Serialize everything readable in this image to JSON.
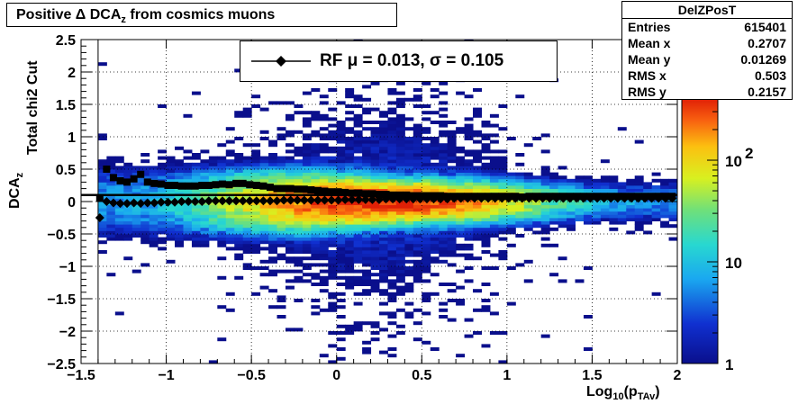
{
  "title": {
    "prefix": "Positive Δ DCA",
    "sub": "z",
    "suffix": " from cosmics muons"
  },
  "stats": {
    "name": "DelZPosT",
    "rows": [
      {
        "label": "Entries",
        "value": "615401"
      },
      {
        "label": "Mean x",
        "value": "0.2707"
      },
      {
        "label": "Mean y",
        "value": "0.01269"
      },
      {
        "label": "RMS x",
        "value": "0.503"
      },
      {
        "label": "RMS y",
        "value": "0.2157"
      }
    ]
  },
  "legend": {
    "text": "RF μ =  0.013, σ =   0.105"
  },
  "axes": {
    "x_title_main": "Log",
    "x_title_sub": "10",
    "x_title_after": "(p",
    "x_title_sub2": "TAv",
    "x_title_end": ")",
    "y_title_top": "Total chi2 Cut",
    "y_title_main": "DCA",
    "y_title_sub": "z"
  },
  "chart_data": {
    "type": "heatmap",
    "xlim": [
      -1.5,
      2.0
    ],
    "ylim": [
      -2.5,
      2.5
    ],
    "log_z": true,
    "zlim": [
      1,
      400
    ],
    "x_ticks": [
      -1.5,
      -1,
      -0.5,
      0,
      0.5,
      1,
      1.5,
      2
    ],
    "x_tick_labels": [
      "−1.5",
      "−1",
      "−0.5",
      "0",
      "0.5",
      "1",
      "1.5",
      "2"
    ],
    "y_ticks": [
      -2.5,
      -2,
      -1.5,
      -1,
      -0.5,
      0,
      0.5,
      1,
      1.5,
      2,
      2.5
    ],
    "y_tick_labels": [
      "−2.5",
      "−2",
      "−1.5",
      "−1",
      "−0.5",
      "0",
      "0.5",
      "1",
      "1.5",
      "2",
      "2.5"
    ],
    "colorbar_ticks": [
      1,
      10,
      100
    ],
    "colorbar_labels": [
      "1",
      "10",
      "10"
    ],
    "colorbar_exp": "2",
    "grid": true,
    "fit_line_y": 0.1,
    "vertical_line_x": -1.4,
    "series": [
      {
        "marker": "square",
        "x": [
          -1.39,
          -1.35,
          -1.31,
          -1.27,
          -1.23,
          -1.19,
          -1.15,
          -1.11,
          -1.07,
          -1.03,
          -0.99,
          -0.95,
          -0.91,
          -0.87,
          -0.83,
          -0.79,
          -0.75,
          -0.71,
          -0.67,
          -0.63,
          -0.59,
          -0.55,
          -0.51,
          -0.47,
          -0.43,
          -0.39,
          -0.35,
          -0.31,
          -0.27,
          -0.23,
          -0.19,
          -0.15,
          -0.11,
          -0.07,
          -0.03,
          0.01,
          0.05,
          0.09,
          0.13,
          0.17,
          0.21,
          0.25,
          0.29,
          0.33,
          0.37,
          0.41,
          0.45,
          0.49,
          0.53,
          0.57,
          0.61,
          0.65,
          0.69,
          0.73,
          0.77,
          0.81,
          0.85,
          0.89,
          0.93,
          0.97,
          1.01,
          1.05,
          1.09,
          1.13,
          1.17,
          1.21,
          1.25,
          1.29,
          1.33,
          1.37,
          1.41,
          1.45,
          1.49,
          1.53,
          1.57,
          1.61,
          1.65,
          1.69,
          1.73,
          1.77,
          1.81,
          1.85,
          1.89,
          1.93,
          1.97
        ],
        "y": [
          0.05,
          0.5,
          0.37,
          0.32,
          0.3,
          0.35,
          0.42,
          0.3,
          0.28,
          0.27,
          0.25,
          0.25,
          0.24,
          0.24,
          0.24,
          0.25,
          0.25,
          0.26,
          0.27,
          0.26,
          0.28,
          0.28,
          0.26,
          0.25,
          0.24,
          0.22,
          0.2,
          0.2,
          0.2,
          0.19,
          0.19,
          0.18,
          0.17,
          0.16,
          0.15,
          0.15,
          0.14,
          0.13,
          0.13,
          0.12,
          0.12,
          0.11,
          0.11,
          0.1,
          0.1,
          0.1,
          0.09,
          0.09,
          0.09,
          0.09,
          0.09,
          0.08,
          0.08,
          0.08,
          0.08,
          0.08,
          0.08,
          0.08,
          0.08,
          0.08,
          0.08,
          0.08,
          0.07,
          0.08,
          0.08,
          0.08,
          0.08,
          0.08,
          0.08,
          0.08,
          0.08,
          0.08,
          0.08,
          0.08,
          0.08,
          0.08,
          0.08,
          0.08,
          0.08,
          0.08,
          0.08,
          0.08,
          0.08,
          0.08,
          0.08
        ]
      },
      {
        "marker": "diamond",
        "x": [
          -1.39,
          -1.35,
          -1.31,
          -1.27,
          -1.23,
          -1.19,
          -1.15,
          -1.11,
          -1.07,
          -1.03,
          -0.99,
          -0.95,
          -0.91,
          -0.87,
          -0.83,
          -0.79,
          -0.75,
          -0.71,
          -0.67,
          -0.63,
          -0.59,
          -0.55,
          -0.51,
          -0.47,
          -0.43,
          -0.39,
          -0.35,
          -0.31,
          -0.27,
          -0.23,
          -0.19,
          -0.15,
          -0.11,
          -0.07,
          -0.03,
          0.01,
          0.05,
          0.09,
          0.13,
          0.17,
          0.21,
          0.25,
          0.29,
          0.33,
          0.37,
          0.41,
          0.45,
          0.49,
          0.53,
          0.57,
          0.61,
          0.65,
          0.69,
          0.73,
          0.77,
          0.81,
          0.85,
          0.89,
          0.93,
          0.97,
          1.01,
          1.05,
          1.09,
          1.13,
          1.17,
          1.21,
          1.25,
          1.29,
          1.33,
          1.37,
          1.41,
          1.45,
          1.49,
          1.53,
          1.57,
          1.61,
          1.65,
          1.69,
          1.73,
          1.77,
          1.81,
          1.85,
          1.89,
          1.93,
          1.97
        ],
        "y": [
          -0.25,
          0.0,
          -0.02,
          -0.03,
          -0.03,
          -0.02,
          -0.03,
          -0.02,
          -0.02,
          -0.01,
          -0.01,
          -0.01,
          0.0,
          0.0,
          0.0,
          0.0,
          0.01,
          0.01,
          0.01,
          0.01,
          0.01,
          0.01,
          0.01,
          0.01,
          0.01,
          0.01,
          0.01,
          0.02,
          0.02,
          0.02,
          0.02,
          0.02,
          0.02,
          0.02,
          0.02,
          0.02,
          0.03,
          0.03,
          0.03,
          0.03,
          0.03,
          0.03,
          0.04,
          0.04,
          0.04,
          0.04,
          0.04,
          0.04,
          0.04,
          0.04,
          0.04,
          0.04,
          0.05,
          0.05,
          0.05,
          0.05,
          0.05,
          0.05,
          0.05,
          0.05,
          0.05,
          0.05,
          0.05,
          0.05,
          0.05,
          0.05,
          0.05,
          0.05,
          0.05,
          0.05,
          0.05,
          0.05,
          0.05,
          0.05,
          0.05,
          0.05,
          0.05,
          0.05,
          0.05,
          0.05,
          0.05,
          0.05,
          0.05,
          0.05,
          0.05
        ]
      }
    ]
  }
}
